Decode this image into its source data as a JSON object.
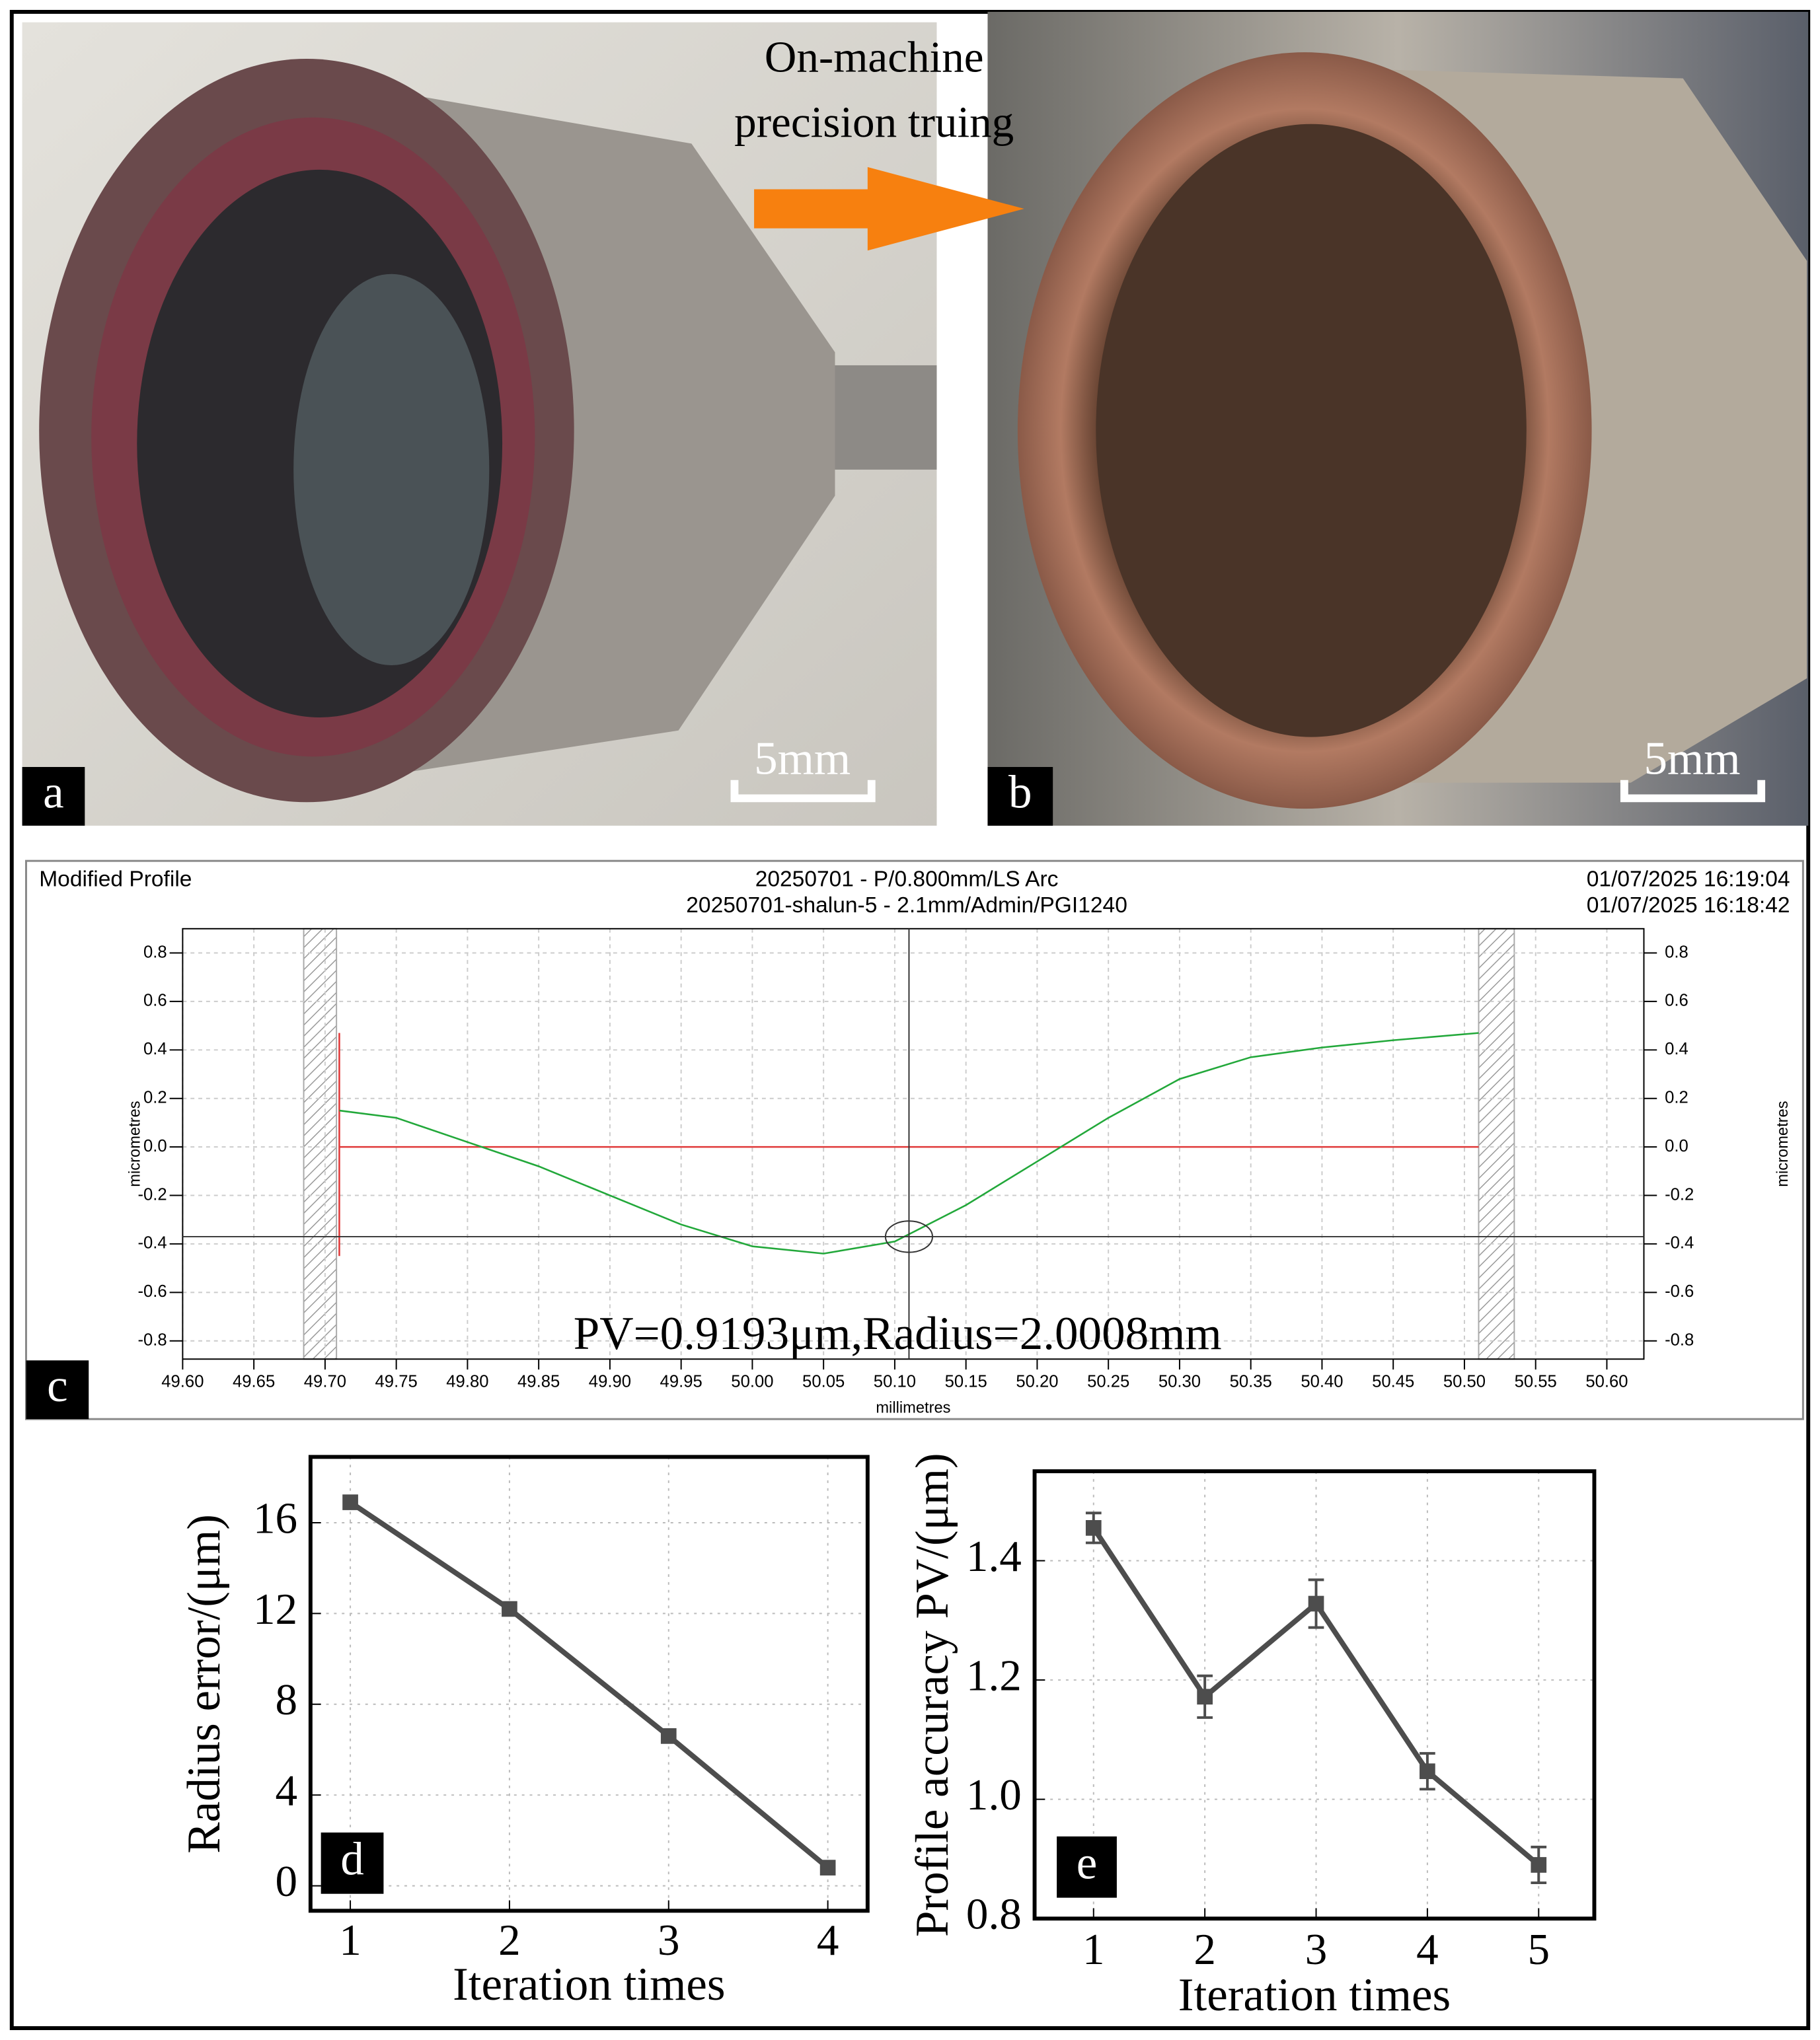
{
  "panel_labels": [
    "a",
    "b",
    "c",
    "d",
    "e"
  ],
  "photos": {
    "arrow_text": [
      "On-machine",
      "precision truing"
    ],
    "scale_bar": "5mm"
  },
  "chart_data": [
    {
      "type": "line",
      "title": "Modified Profile",
      "subtitle": [
        "20250701 - P/0.800mm/LS Arc",
        "20250701-shalun-5 - 2.1mm/Admin/PGI1240"
      ],
      "timestamps": [
        "01/07/2025 16:19:04",
        "01/07/2025 16:18:42"
      ],
      "xlabel": "millimetres",
      "ylabel": "micrometres",
      "annotation": "PV=0.9193μm,Radius=2.0008mm",
      "x": [
        49.71,
        49.75,
        49.8,
        49.85,
        49.9,
        49.95,
        50.0,
        50.05,
        50.1,
        50.15,
        50.2,
        50.25,
        50.3,
        50.35,
        50.4,
        50.45,
        50.51
      ],
      "values": [
        0.15,
        0.12,
        0.02,
        -0.08,
        -0.2,
        -0.32,
        -0.41,
        -0.44,
        -0.39,
        -0.24,
        -0.06,
        0.12,
        0.28,
        0.37,
        0.41,
        0.44,
        0.47
      ],
      "color": "#22a83a",
      "reference": {
        "color": "#e03a3a",
        "x": [
          49.71,
          49.71,
          49.71,
          50.51
        ],
        "values": [
          0.47,
          -0.45,
          0,
          0
        ]
      },
      "cursor": {
        "x": 50.11,
        "y": -0.37
      },
      "excluded": [
        [
          49.685,
          49.708
        ],
        [
          50.51,
          50.535
        ]
      ],
      "xlim": [
        49.6,
        50.626
      ],
      "ylim": [
        -0.875,
        0.9
      ],
      "xticks": [
        {
          "value": 49.6,
          "label": "49.60"
        },
        49.65,
        {
          "value": 49.7,
          "label": "49.70"
        },
        49.75,
        {
          "value": 49.8,
          "label": "49.80"
        },
        49.85,
        {
          "value": 49.9,
          "label": "49.90"
        },
        49.95,
        {
          "value": 50,
          "label": "50.00"
        },
        50.05,
        {
          "value": 50.1,
          "label": "50.10"
        },
        50.15,
        {
          "value": 50.2,
          "label": "50.20"
        },
        50.25,
        {
          "value": 50.3,
          "label": "50.30"
        },
        50.35,
        {
          "value": 50.4,
          "label": "50.40"
        },
        50.45,
        {
          "value": 50.5,
          "label": "50.50"
        },
        50.55,
        {
          "value": 50.6,
          "label": "50.60"
        }
      ],
      "yticks": [
        -0.8,
        -0.6,
        -0.4,
        -0.2,
        {
          "value": 0,
          "label": "0.0"
        },
        0.2,
        0.4,
        0.6,
        0.8
      ],
      "mirror_y": true,
      "grid": true
    },
    {
      "type": "line",
      "xlabel": "Iteration times",
      "ylabel": "Radius error/(μm)",
      "x": [
        1,
        2,
        3,
        4
      ],
      "values": [
        16.9,
        12.2,
        6.6,
        0.8
      ],
      "color": "#4d4d4d",
      "marker": "square",
      "xlim": [
        0.75,
        4.25
      ],
      "ylim": [
        -1.1,
        18.9
      ],
      "xticks": [
        1,
        2,
        3,
        4
      ],
      "yticks": [
        0,
        4,
        8,
        12,
        16
      ],
      "grid": true
    },
    {
      "type": "line",
      "xlabel": "Iteration times",
      "ylabel": "Profile accuracy PV/(μm)",
      "x": [
        1,
        2,
        3,
        4,
        5
      ],
      "values": [
        1.455,
        1.172,
        1.328,
        1.047,
        0.89
      ],
      "errors": [
        0.025,
        0.035,
        0.04,
        0.03,
        0.03
      ],
      "color": "#4d4d4d",
      "marker": "square",
      "xlim": [
        0.47,
        5.5
      ],
      "ylim": [
        0.8,
        1.55
      ],
      "xticks": [
        1,
        2,
        3,
        4,
        5
      ],
      "yticks": [
        {
          "value": 0.8,
          "label": "0.8"
        },
        {
          "value": 1,
          "label": "1.0"
        },
        {
          "value": 1.2,
          "label": "1.2"
        },
        {
          "value": 1.4,
          "label": "1.4"
        }
      ],
      "grid": true
    }
  ]
}
